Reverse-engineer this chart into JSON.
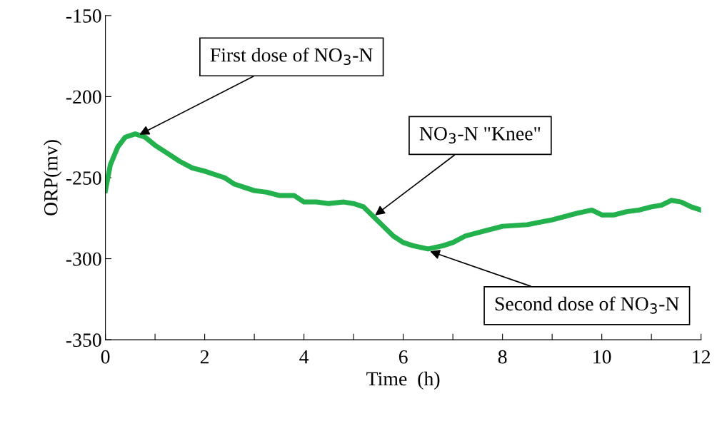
{
  "chart_data": {
    "type": "line",
    "xlabel": "Time  (h)",
    "ylabel": "ORP(mv)",
    "series": [
      {
        "color": "#22b14c",
        "x": [
          0,
          0.1,
          0.25,
          0.4,
          0.6,
          0.8,
          1.0,
          1.25,
          1.5,
          1.75,
          2.0,
          2.2,
          2.4,
          2.6,
          2.8,
          3.0,
          3.25,
          3.5,
          3.8,
          4.0,
          4.25,
          4.5,
          4.8,
          5.0,
          5.2,
          5.4,
          5.6,
          5.8,
          6.0,
          6.2,
          6.5,
          6.8,
          7.0,
          7.25,
          7.5,
          7.75,
          8.0,
          8.5,
          9.0,
          9.5,
          9.8,
          10.0,
          10.25,
          10.5,
          10.75,
          11.0,
          11.2,
          11.4,
          11.6,
          11.8,
          12.0
        ],
        "values": [
          -258,
          -242,
          -231,
          -225,
          -223,
          -225,
          -230,
          -235,
          -240,
          -244,
          -246,
          -248,
          -250,
          -254,
          -256,
          -258,
          -259,
          -261,
          -261,
          -265,
          -265,
          -266,
          -265,
          -266,
          -268,
          -274,
          -280,
          -286,
          -290,
          -292,
          -294,
          -292,
          -290,
          -286,
          -284,
          -282,
          -280,
          -279,
          -276,
          -272,
          -270,
          -273,
          -273,
          -271,
          -270,
          -268,
          -267,
          -264,
          -265,
          -268,
          -270
        ]
      }
    ],
    "xlim": [
      0,
      12
    ],
    "xticks": [
      0,
      {
        "value": 1,
        "label": null
      },
      2,
      {
        "value": 3,
        "label": null
      },
      4,
      {
        "value": 5,
        "label": null
      },
      6,
      {
        "value": 7,
        "label": null
      },
      8,
      {
        "value": 9,
        "label": null
      },
      10,
      {
        "value": 11,
        "label": null
      },
      12
    ],
    "ylim": [
      -350,
      -150
    ],
    "yticks": [
      -350,
      -300,
      -250,
      -200,
      -150
    ],
    "grid": false,
    "legend": false,
    "marker": "none",
    "line_style": "solid",
    "annotations": [
      {
        "text": "First dose of NO$_{3}$-N",
        "x": 0.65,
        "y": -224
      },
      {
        "text": "NO$_{3}$-N \"Knee\"",
        "x": 5.4,
        "y": -274
      },
      {
        "text": "Second dose of NO$_{3}$-N",
        "x": 6.5,
        "y": -295
      }
    ]
  }
}
